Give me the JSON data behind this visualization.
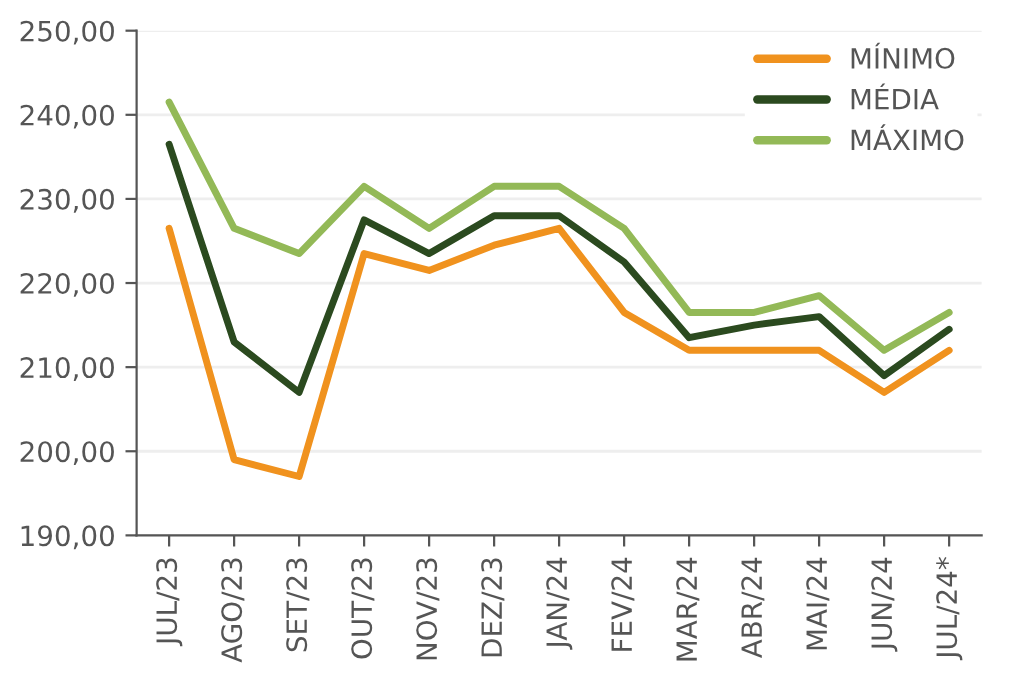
{
  "chart_data": {
    "type": "line",
    "categories": [
      "JUL/23",
      "AGO/23",
      "SET/23",
      "OUT/23",
      "NOV/23",
      "DEZ/23",
      "JAN/24",
      "FEV/24",
      "MAR/24",
      "ABR/24",
      "MAI/24",
      "JUN/24",
      "JUL/24*"
    ],
    "series": [
      {
        "name": "MÍNIMO",
        "color": "#f0921e",
        "values": [
          226.5,
          199,
          197,
          223.5,
          221.5,
          224.5,
          226.5,
          216.5,
          212,
          212,
          212,
          207,
          212
        ]
      },
      {
        "name": "MÉDIA",
        "color": "#2b4a1f",
        "values": [
          236.5,
          213,
          207,
          227.5,
          223.5,
          228,
          228,
          222.5,
          213.5,
          215,
          216,
          209,
          214.5
        ]
      },
      {
        "name": "MÁXIMO",
        "color": "#93b957",
        "values": [
          241.5,
          226.5,
          223.5,
          231.5,
          226.5,
          231.5,
          231.5,
          226.5,
          216.5,
          216.5,
          218.5,
          212,
          216.5
        ]
      }
    ],
    "ylim": [
      190,
      250
    ],
    "yticks": [
      {
        "value": 190,
        "label": "190,00"
      },
      {
        "value": 200,
        "label": "200,00"
      },
      {
        "value": 210,
        "label": "210,00"
      },
      {
        "value": 220,
        "label": "220,00"
      },
      {
        "value": 230,
        "label": "230,00"
      },
      {
        "value": 240,
        "label": "240,00"
      },
      {
        "value": 250,
        "label": "250,00"
      }
    ],
    "grid": "y",
    "legend": "top right",
    "marker": "none",
    "line_style": "solid"
  }
}
